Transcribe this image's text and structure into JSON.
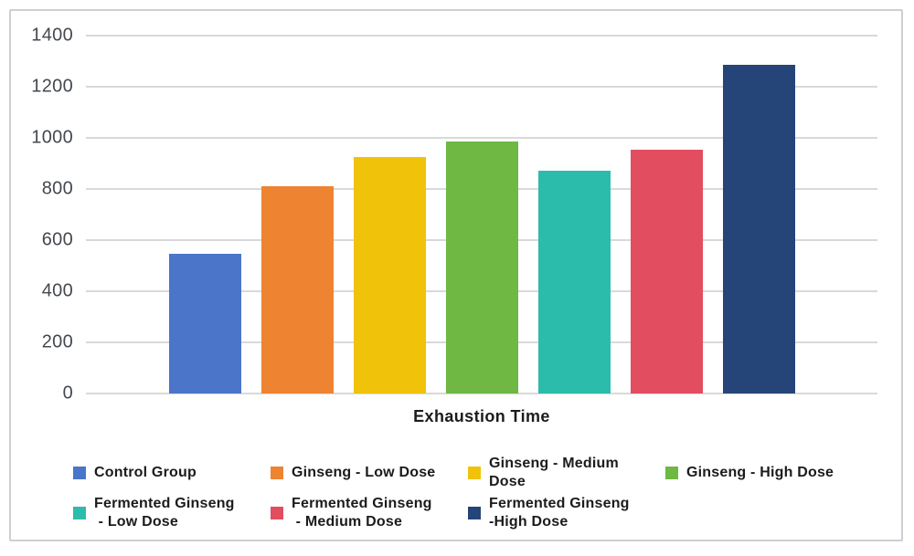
{
  "chart": {
    "background_color": "#ffffff",
    "border_color": "#ccd0d4",
    "gridline_color": "#d9d9d9",
    "tick_label_color": "#44494f",
    "text_color": "#1b1b1b"
  },
  "chart_data": {
    "type": "bar",
    "title": "",
    "xlabel": "Exhaustion Time",
    "ylabel": "",
    "ylim": [
      0,
      1400
    ],
    "yticks": [
      0,
      200,
      400,
      600,
      800,
      1000,
      1200,
      1400
    ],
    "grid": "horizontal",
    "legend_position": "bottom",
    "categories": [
      "Control Group",
      "Ginseng - Low Dose",
      "Ginseng - Medium Dose",
      "Ginseng - High Dose",
      "Fermented Ginseng - Low Dose",
      "Fermented Ginseng - Medium Dose",
      "Fermented Ginseng - High Dose"
    ],
    "values": [
      545,
      810,
      925,
      985,
      870,
      955,
      1285
    ],
    "colors": [
      "#4a75c9",
      "#ee8331",
      "#f0c209",
      "#6eb843",
      "#2cbcab",
      "#e24d60",
      "#254579"
    ]
  },
  "legend": {
    "items": [
      {
        "label": "Control Group",
        "color": "#4a75c9"
      },
      {
        "label": "Ginseng - Low Dose",
        "color": "#ee8331"
      },
      {
        "label": "Ginseng - Medium\nDose",
        "color": "#f0c209"
      },
      {
        "label": "Ginseng - High Dose",
        "color": "#6eb843"
      },
      {
        "label": "Fermented Ginseng\n - Low Dose",
        "color": "#2cbcab"
      },
      {
        "label": "Fermented Ginseng\n - Medium Dose",
        "color": "#e24d60"
      },
      {
        "label": "Fermented Ginseng\n-High Dose",
        "color": "#254579"
      }
    ]
  }
}
